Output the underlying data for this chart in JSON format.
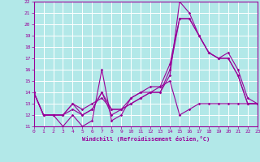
{
  "xlabel": "Windchill (Refroidissement éolien,°C)",
  "xlim": [
    0,
    23
  ],
  "ylim": [
    11,
    22
  ],
  "xticks": [
    0,
    1,
    2,
    3,
    4,
    5,
    6,
    7,
    8,
    9,
    10,
    11,
    12,
    13,
    14,
    15,
    16,
    17,
    18,
    19,
    20,
    21,
    22,
    23
  ],
  "yticks": [
    11,
    12,
    13,
    14,
    15,
    16,
    17,
    18,
    19,
    20,
    21,
    22
  ],
  "bg_color": "#b2e8e8",
  "line_color": "#990099",
  "grid_color": "#ffffff",
  "curve1_x": [
    0,
    1,
    2,
    3,
    4,
    5,
    6,
    7,
    8,
    9,
    10,
    11,
    12,
    13,
    14,
    15,
    16,
    17,
    18,
    19,
    20,
    21,
    22,
    23
  ],
  "curve1_y": [
    14,
    12,
    12,
    11,
    12,
    11,
    11.5,
    16,
    11.5,
    12,
    13.5,
    14,
    14,
    14,
    15.5,
    22,
    21,
    19,
    17.5,
    17,
    17,
    15.5,
    13,
    13
  ],
  "curve2_x": [
    0,
    1,
    2,
    3,
    4,
    5,
    6,
    7,
    8,
    9,
    10,
    11,
    12,
    13,
    14,
    15,
    16,
    17,
    18,
    19,
    20,
    21,
    22,
    23
  ],
  "curve2_y": [
    14,
    12,
    12,
    12,
    12.5,
    12,
    12.5,
    14,
    12,
    12.5,
    13,
    13.5,
    14,
    14,
    16,
    20.5,
    20.5,
    19,
    17.5,
    17,
    17,
    15.5,
    13,
    13
  ],
  "curve3_x": [
    0,
    1,
    2,
    3,
    4,
    5,
    6,
    7,
    8,
    9,
    10,
    11,
    12,
    13,
    14,
    15,
    16,
    17,
    18,
    19,
    20,
    21,
    22,
    23
  ],
  "curve3_y": [
    14,
    12,
    12,
    12,
    13,
    12,
    12.5,
    14,
    12.5,
    12.5,
    13.5,
    14,
    14.5,
    14.5,
    16.5,
    20.5,
    20.5,
    19,
    17.5,
    17,
    17.5,
    16,
    13.5,
    13
  ],
  "curve4_x": [
    0,
    1,
    2,
    3,
    4,
    5,
    6,
    7,
    8,
    9,
    10,
    11,
    12,
    13,
    14,
    15,
    16,
    17,
    18,
    19,
    20,
    21,
    22,
    23
  ],
  "curve4_y": [
    14,
    12,
    12,
    12,
    13,
    12.5,
    13,
    13.5,
    12.5,
    12.5,
    13,
    13.5,
    14,
    14.5,
    15,
    12,
    12.5,
    13,
    13,
    13,
    13,
    13,
    13,
    13
  ]
}
